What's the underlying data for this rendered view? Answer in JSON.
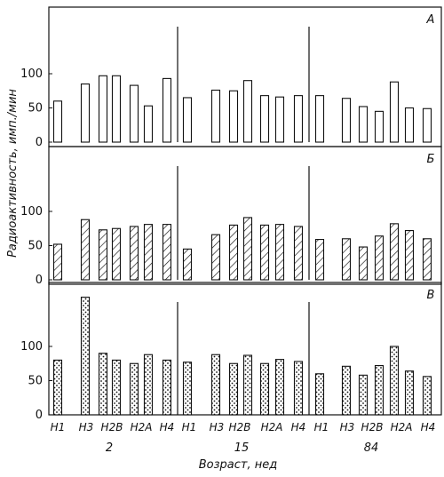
{
  "chart_data": {
    "type": "bar",
    "xlabel": "Возраст, нед",
    "ylabel": "Радиоактивность, имп./мин",
    "groups": [
      "2",
      "15",
      "84"
    ],
    "categories": [
      "Н1",
      "Н3",
      "Н2В",
      "Н2А",
      "Н4"
    ],
    "panels": [
      {
        "label": "А",
        "ylim": [
          0,
          175
        ],
        "yticks": [
          0,
          50,
          100
        ],
        "pattern": "plain",
        "values": {
          "2": [
            {
              "Н1": 60
            },
            {
              "Н3": 85,
              "Н2В": 97
            },
            {
              "Н2В": 97
            },
            {
              "Н2А": 83,
              "Н2А_2": 53
            },
            {
              "Н4": 93
            }
          ],
          "15": [],
          "84": []
        },
        "series_values": [
          [
            60,
            85,
            97,
            97,
            83,
            53,
            93
          ],
          [
            65,
            76,
            75,
            90,
            68,
            66,
            68
          ],
          [
            68,
            64,
            52,
            45,
            88,
            50,
            49
          ]
        ]
      },
      {
        "label": "Б",
        "ylim": [
          0,
          175
        ],
        "yticks": [
          0,
          50,
          100
        ],
        "pattern": "hatched",
        "series_values": [
          [
            52,
            88,
            73,
            75,
            78,
            81,
            81
          ],
          [
            45,
            66,
            80,
            91,
            80,
            81,
            78
          ],
          [
            59,
            60,
            48,
            64,
            82,
            72,
            60
          ]
        ]
      },
      {
        "label": "В",
        "ylim": [
          0,
          175
        ],
        "yticks": [
          0,
          50,
          100
        ],
        "pattern": "dotted",
        "series_values": [
          [
            80,
            172,
            90,
            80,
            75,
            88,
            80
          ],
          [
            77,
            88,
            75,
            87,
            75,
            81,
            78
          ],
          [
            60,
            71,
            58,
            72,
            100,
            64,
            56
          ]
        ]
      }
    ],
    "x_tick_labels": [
      "Н1",
      "Н3",
      "Н2В",
      "Н2А",
      "Н4",
      "Н1",
      "Н3",
      "Н2В",
      "Н2А",
      "Н4",
      "Н1",
      "Н3",
      "Н2В",
      "Н2А",
      "Н4"
    ]
  }
}
